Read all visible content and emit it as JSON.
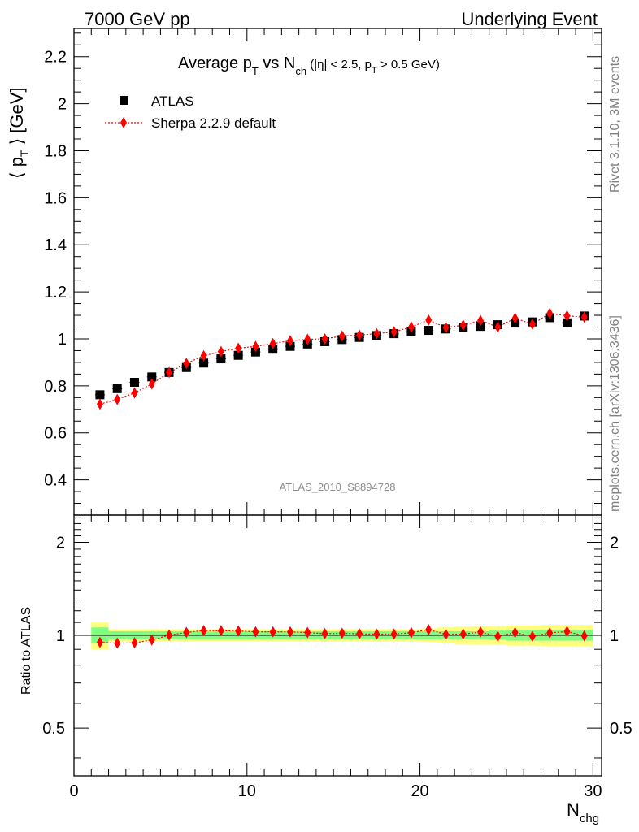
{
  "header": {
    "left": "7000 GeV pp",
    "right": "Underlying Event"
  },
  "side_labels": {
    "top": "Rivet 3.1.10,  3M events",
    "bottom": "mcplots.cern.ch [arXiv:1306.3436]"
  },
  "title": {
    "main": "Average p",
    "main_sub": "T",
    "mid": " vs N",
    "mid_sub": "ch",
    "cuts1": " (|η| < 2.5, p",
    "cuts_sub": "T",
    "cuts2": " > 0.5 GeV)"
  },
  "watermark": "ATLAS_2010_S8894728",
  "legend": {
    "data_label": "ATLAS",
    "mc_label": "Sherpa 2.2.9 default"
  },
  "axes": {
    "ylabel_main": "⟨ p",
    "ylabel_sub": "T",
    "ylabel_end": " ⟩ [GeV]",
    "ylabel_ratio": "Ratio to ATLAS",
    "xlabel": "N",
    "xlabel_sub": "chg"
  },
  "colors": {
    "data": "#000000",
    "mc": "#ff0000",
    "band_inner": "#7fff7f",
    "band_outer": "#ffff7f"
  },
  "chart_data": {
    "type": "scatter",
    "x": [
      1.5,
      2.5,
      3.5,
      4.5,
      5.5,
      6.5,
      7.5,
      8.5,
      9.5,
      10.5,
      11.5,
      12.5,
      13.5,
      14.5,
      15.5,
      16.5,
      17.5,
      18.5,
      19.5,
      20.5,
      21.5,
      22.5,
      23.5,
      24.5,
      25.5,
      26.5,
      27.5,
      28.5,
      29.5
    ],
    "xlim": [
      0,
      30.5
    ],
    "ylim": [
      0.25,
      2.32
    ],
    "ratio_ylim": [
      0.35,
      2.45
    ],
    "ratio_log": true,
    "x_ticks": [
      0,
      10,
      20,
      30
    ],
    "y_ticks": [
      0.4,
      0.6,
      0.8,
      1,
      1.2,
      1.4,
      1.6,
      1.8,
      2,
      2.2
    ],
    "y_tick_labels": [
      "0.4",
      "0.6",
      "0.8",
      "1",
      "1.2",
      "1.4",
      "1.6",
      "1.8",
      "2",
      "2.2"
    ],
    "ratio_ticks": [
      0.5,
      1,
      2
    ],
    "ratio_tick_labels": [
      "0.5",
      "1",
      "2"
    ],
    "series": [
      {
        "name": "ATLAS",
        "values": [
          0.762,
          0.788,
          0.815,
          0.838,
          0.857,
          0.878,
          0.897,
          0.915,
          0.93,
          0.944,
          0.956,
          0.968,
          0.978,
          0.988,
          0.997,
          1.006,
          1.014,
          1.022,
          1.03,
          1.036,
          1.042,
          1.05,
          1.053,
          1.06,
          1.067,
          1.072,
          1.09,
          1.068,
          1.097
        ]
      },
      {
        "name": "Sherpa 2.2.9 default",
        "values": [
          0.722,
          0.742,
          0.77,
          0.808,
          0.857,
          0.896,
          0.928,
          0.946,
          0.96,
          0.968,
          0.98,
          0.992,
          0.998,
          1.0,
          1.012,
          1.016,
          1.022,
          1.03,
          1.05,
          1.08,
          1.048,
          1.058,
          1.078,
          1.05,
          1.088,
          1.062,
          1.108,
          1.098,
          1.092
        ]
      }
    ],
    "ratio": [
      0.948,
      0.942,
      0.945,
      0.965,
      1.0,
      1.021,
      1.035,
      1.034,
      1.032,
      1.026,
      1.025,
      1.025,
      1.02,
      1.012,
      1.015,
      1.01,
      1.008,
      1.008,
      1.019,
      1.042,
      1.006,
      1.008,
      1.024,
      0.991,
      1.02,
      0.991,
      1.017,
      1.028,
      0.995
    ],
    "band_inner": [
      0.06,
      0.03,
      0.03,
      0.03,
      0.03,
      0.03,
      0.03,
      0.03,
      0.03,
      0.03,
      0.03,
      0.03,
      0.03,
      0.03,
      0.03,
      0.03,
      0.03,
      0.03,
      0.03,
      0.03,
      0.03,
      0.03,
      0.03,
      0.035,
      0.04,
      0.04,
      0.04,
      0.04,
      0.04
    ],
    "band_outer": [
      0.1,
      0.045,
      0.045,
      0.045,
      0.045,
      0.045,
      0.045,
      0.045,
      0.045,
      0.045,
      0.045,
      0.045,
      0.045,
      0.045,
      0.045,
      0.045,
      0.045,
      0.045,
      0.045,
      0.05,
      0.06,
      0.065,
      0.07,
      0.07,
      0.075,
      0.075,
      0.08,
      0.08,
      0.08
    ]
  }
}
